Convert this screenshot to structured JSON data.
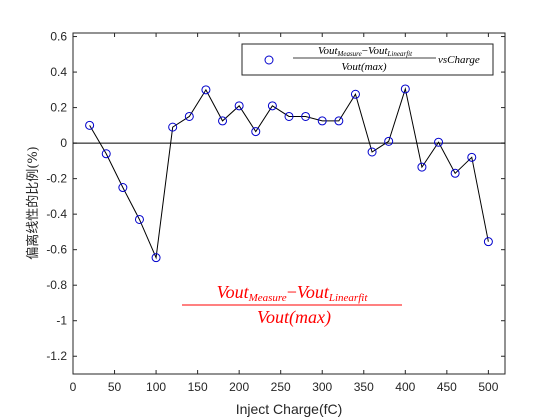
{
  "chart_data": {
    "type": "line",
    "xlabel": "Inject Charge(fC)",
    "ylabel": "偏离线性的比例(%)",
    "xlim": [
      0,
      520
    ],
    "ylim": [
      -1.3,
      0.62
    ],
    "xticks": [
      0,
      50,
      100,
      150,
      200,
      250,
      300,
      350,
      400,
      450,
      500
    ],
    "yticks": [
      0.6,
      0.4,
      0.2,
      0,
      -0.2,
      -0.4,
      -0.6,
      -0.8,
      -1,
      -1.2
    ],
    "xtick_labels": [
      "0",
      "50",
      "100",
      "150",
      "200",
      "250",
      "300",
      "350",
      "400",
      "450",
      "500"
    ],
    "ytick_labels": [
      "0.6",
      "0.4",
      "0.2",
      "0",
      "-0.2",
      "-0.4",
      "-0.6",
      "-0.8",
      "-1",
      "-1.2"
    ],
    "grid": false,
    "reference_line_y": 0,
    "series": [
      {
        "x": [
          20,
          40,
          60,
          80,
          100,
          120,
          140,
          160,
          180,
          200,
          220,
          240,
          260,
          280,
          300,
          320,
          340,
          360,
          380,
          400,
          420,
          440,
          460,
          480,
          500
        ],
        "y": [
          0.1,
          -0.06,
          -0.25,
          -0.43,
          -0.645,
          0.09,
          0.15,
          0.3,
          0.125,
          0.21,
          0.065,
          0.21,
          0.15,
          0.15,
          0.125,
          0.125,
          0.275,
          -0.05,
          0.01,
          0.305,
          -0.135,
          0.005,
          -0.17,
          -0.08,
          -0.555
        ],
        "marker": "circle",
        "marker_color": "#0000cc",
        "line_color": "#000000"
      }
    ],
    "legend": {
      "position": "top-right",
      "numerator_a": "Vout",
      "numerator_a_sub": "Measure",
      "minus": "−",
      "numerator_b": "Vout",
      "numerator_b_sub": "Linearfit",
      "denominator": "Vout(max)",
      "suffix": "vsCharge"
    },
    "annotation": {
      "numerator_a": "Vout",
      "numerator_a_sub": "Measure",
      "minus": "−",
      "numerator_b": "Vout",
      "numerator_b_sub": "Linearfit",
      "denominator": "Vout(max)",
      "color": "#ff0000"
    }
  }
}
